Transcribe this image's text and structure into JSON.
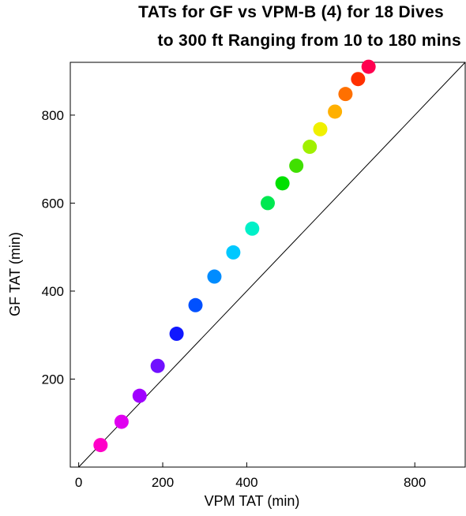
{
  "chart_data": {
    "type": "scatter",
    "title_line1": "TATs for GF vs VPM-B (4) for 18 Dives",
    "title_line2": "to 300 ft Ranging from 10 to 180 mins",
    "xlabel": "VPM TAT  (min)",
    "ylabel": "GF TAT (min)",
    "xlim": [
      -20,
      920
    ],
    "ylim": [
      0,
      920
    ],
    "xticks": [
      0,
      200,
      400,
      800
    ],
    "yticks": [
      200,
      400,
      600,
      800
    ],
    "reference_line": {
      "from": [
        0,
        0
      ],
      "to": [
        920,
        920
      ]
    },
    "points": [
      {
        "x": 52,
        "y": 50,
        "color": "#ff00c8"
      },
      {
        "x": 102,
        "y": 103,
        "color": "#e000f0"
      },
      {
        "x": 145,
        "y": 162,
        "color": "#a000ff"
      },
      {
        "x": 188,
        "y": 230,
        "color": "#7010ff"
      },
      {
        "x": 233,
        "y": 303,
        "color": "#1018ff"
      },
      {
        "x": 278,
        "y": 368,
        "color": "#0050ff"
      },
      {
        "x": 323,
        "y": 433,
        "color": "#008cff"
      },
      {
        "x": 368,
        "y": 488,
        "color": "#00c8ff"
      },
      {
        "x": 413,
        "y": 542,
        "color": "#00f0c8"
      },
      {
        "x": 450,
        "y": 600,
        "color": "#00e850"
      },
      {
        "x": 485,
        "y": 645,
        "color": "#00e000"
      },
      {
        "x": 518,
        "y": 685,
        "color": "#40e000"
      },
      {
        "x": 550,
        "y": 728,
        "color": "#a0f000"
      },
      {
        "x": 575,
        "y": 768,
        "color": "#f0f000"
      },
      {
        "x": 610,
        "y": 808,
        "color": "#ffb000"
      },
      {
        "x": 635,
        "y": 848,
        "color": "#ff7000"
      },
      {
        "x": 665,
        "y": 882,
        "color": "#ff3000"
      },
      {
        "x": 690,
        "y": 910,
        "color": "#ff0050"
      }
    ]
  }
}
